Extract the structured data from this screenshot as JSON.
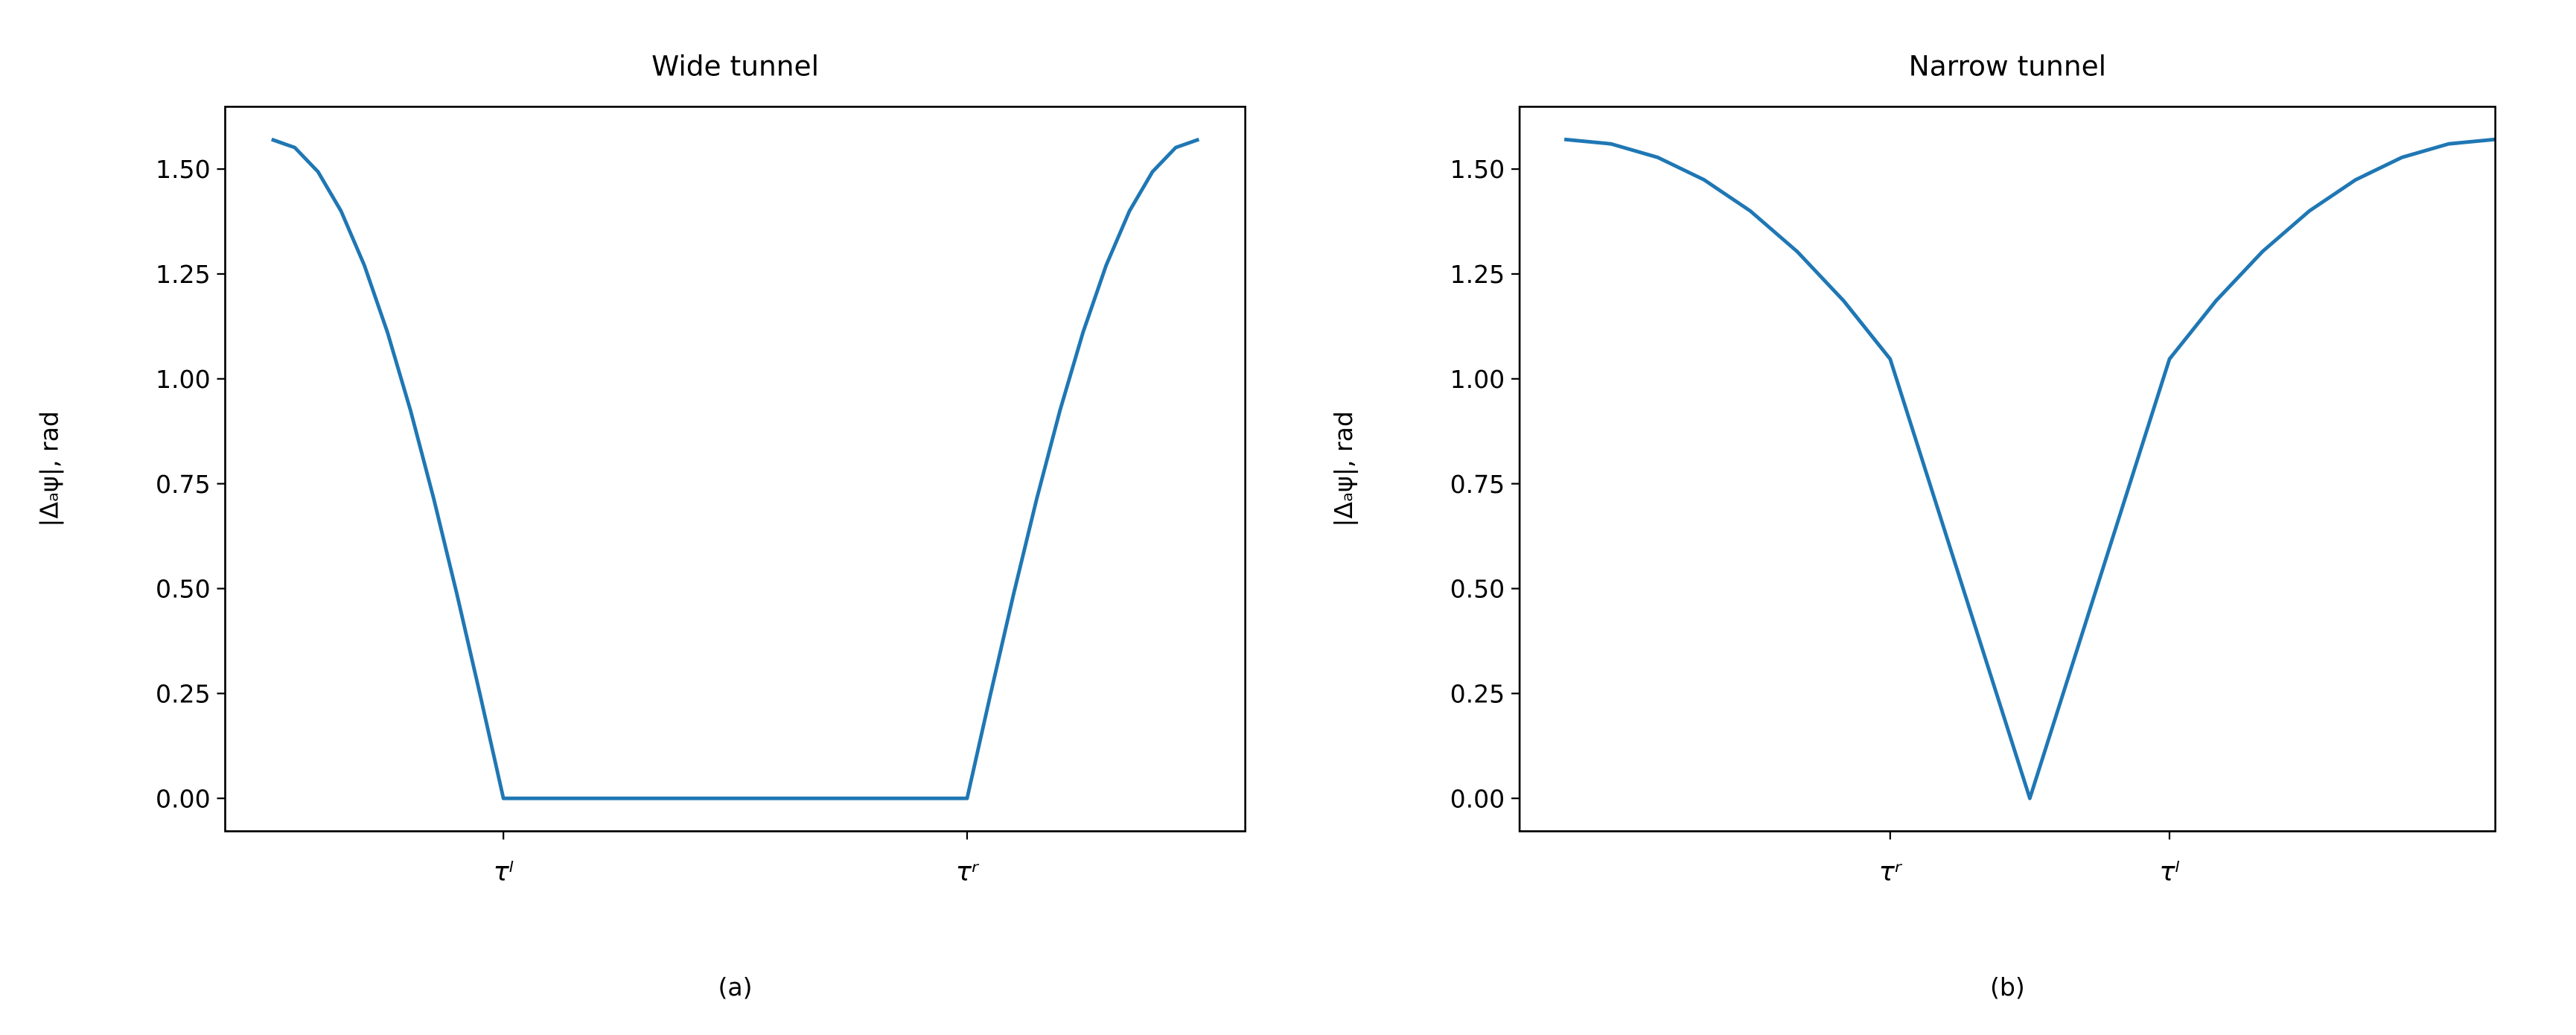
{
  "chart_data": [
    {
      "type": "line",
      "title": "Wide tunnel",
      "ylabel": "|Δₐψ|, rad",
      "caption": "(a)",
      "color": "#1f77b4",
      "x": [
        0,
        0.025,
        0.05,
        0.075,
        0.1,
        0.125,
        0.15,
        0.175,
        0.2,
        0.225,
        0.25,
        0.5,
        0.75,
        0.775,
        0.8,
        0.825,
        0.85,
        0.875,
        0.9,
        0.925,
        0.95,
        0.975,
        1
      ],
      "values": [
        1.5708,
        1.5514,
        1.4939,
        1.3996,
        1.2708,
        1.1107,
        0.9233,
        0.7132,
        0.4854,
        0.2457,
        0,
        0,
        0,
        0.2457,
        0.4854,
        0.7132,
        0.9233,
        1.1107,
        1.2708,
        1.3996,
        1.4939,
        1.5514,
        1.5708
      ],
      "xlim": [
        -0.05,
        1.05
      ],
      "ylim": [
        -0.0785,
        1.6485
      ],
      "xticks": [
        {
          "value": 0.25,
          "label": "τˡ"
        },
        {
          "value": 0.75,
          "label": "τʳ"
        }
      ],
      "yticks": [
        {
          "value": 0,
          "label": "0.00"
        },
        0.25,
        {
          "value": 0.5,
          "label": "0.50"
        },
        0.75,
        {
          "value": 1,
          "label": "1.00"
        },
        1.25,
        {
          "value": 1.5,
          "label": "1.50"
        }
      ]
    },
    {
      "type": "line",
      "title": "Narrow tunnel",
      "ylabel": "|Δₐψ|, rad",
      "caption": "(b)",
      "color": "#1f77b4",
      "x": [
        0,
        0.05,
        0.1,
        0.15,
        0.2,
        0.25,
        0.3,
        0.35,
        0.5,
        0.65,
        0.7,
        0.75,
        0.8,
        0.85,
        0.9,
        0.95,
        1
      ],
      "values": [
        1.5708,
        1.5601,
        1.5281,
        1.4746,
        1.3998,
        1.3037,
        1.1861,
        1.0472,
        0,
        1.0472,
        1.1861,
        1.3037,
        1.3998,
        1.4746,
        1.5281,
        1.5601,
        1.5708
      ],
      "xlim": [
        -0.048,
        1.0
      ],
      "ylim": [
        -0.0785,
        1.6485
      ],
      "xticks": [
        {
          "value": 0.35,
          "label": "τʳ"
        },
        {
          "value": 0.65,
          "label": "τˡ"
        }
      ],
      "yticks": [
        {
          "value": 0,
          "label": "0.00"
        },
        0.25,
        {
          "value": 0.5,
          "label": "0.50"
        },
        0.75,
        {
          "value": 1,
          "label": "1.00"
        },
        1.25,
        {
          "value": 1.5,
          "label": "1.50"
        }
      ]
    }
  ]
}
